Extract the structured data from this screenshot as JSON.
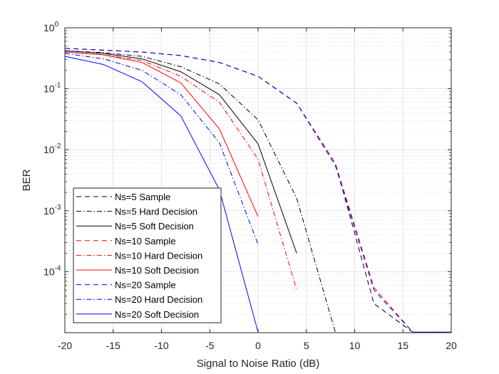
{
  "chart_data": {
    "type": "line",
    "xlabel": "Signal to Noise Ratio (dB)",
    "ylabel": "BER",
    "xlim": [
      -20,
      20
    ],
    "ylim": [
      1e-05,
      1
    ],
    "yscale": "log",
    "x_ticks": [
      -20,
      -15,
      -10,
      -5,
      0,
      5,
      10,
      15,
      20
    ],
    "x_tick_labels": [
      "-20",
      "-15",
      "-10",
      "-5",
      "0",
      "5",
      "10",
      "15",
      "20"
    ],
    "y_ticks": [
      {
        "value": 1,
        "base": "10",
        "exp": "0"
      },
      {
        "value": 0.1,
        "base": "10",
        "exp": "-1"
      },
      {
        "value": 0.01,
        "base": "10",
        "exp": "-2"
      },
      {
        "value": 0.001,
        "base": "10",
        "exp": "-3"
      },
      {
        "value": 0.0001,
        "base": "10",
        "exp": "-4"
      }
    ],
    "grid": true,
    "minor_grid": true,
    "legend_position": "bottom-left",
    "series": [
      {
        "name": "Ns=5 Sample",
        "color": "#000000",
        "style": "dashed",
        "x": [
          -20,
          -16,
          -12,
          -8,
          -4,
          0,
          4,
          8,
          12,
          16,
          20
        ],
        "y": [
          0.46,
          0.43,
          0.4,
          0.35,
          0.27,
          0.16,
          0.058,
          0.006,
          3e-05,
          1.02e-05,
          1.02e-05
        ]
      },
      {
        "name": "Ns=5 Hard Decision",
        "color": "#000000",
        "style": "dashdot",
        "x": [
          -20,
          -16,
          -12,
          -8,
          -4,
          0,
          4,
          8
        ],
        "y": [
          0.42,
          0.39,
          0.34,
          0.23,
          0.12,
          0.031,
          0.0016,
          1.02e-05
        ]
      },
      {
        "name": "Ns=5 Soft Decision",
        "color": "#000000",
        "style": "solid",
        "x": [
          -20,
          -16,
          -12,
          -8,
          -4,
          0,
          4
        ],
        "y": [
          0.42,
          0.38,
          0.31,
          0.19,
          0.08,
          0.0125,
          0.0002
        ]
      },
      {
        "name": "Ns=10 Sample",
        "color": "#ff0000",
        "style": "dashed",
        "x": [
          -20,
          -16,
          -12,
          -8,
          -4,
          0,
          4,
          8,
          12,
          16,
          20
        ],
        "y": [
          0.46,
          0.43,
          0.4,
          0.35,
          0.27,
          0.16,
          0.058,
          0.006,
          5.5e-05,
          1.02e-05,
          1.02e-05
        ]
      },
      {
        "name": "Ns=10 Hard Decision",
        "color": "#ff0000",
        "style": "dashdot",
        "x": [
          -20,
          -16,
          -12,
          -8,
          -4,
          0,
          4
        ],
        "y": [
          0.4,
          0.36,
          0.29,
          0.16,
          0.06,
          0.007,
          5e-05
        ]
      },
      {
        "name": "Ns=10 Soft Decision",
        "color": "#ff0000",
        "style": "solid",
        "x": [
          -20,
          -16,
          -12,
          -8,
          -4,
          0
        ],
        "y": [
          0.4,
          0.36,
          0.27,
          0.125,
          0.022,
          0.0008
        ]
      },
      {
        "name": "Ns=20 Sample",
        "color": "#0000ff",
        "style": "dashed",
        "x": [
          -20,
          -16,
          -12,
          -8,
          -4,
          0,
          4,
          8,
          12,
          16,
          20
        ],
        "y": [
          0.46,
          0.43,
          0.4,
          0.35,
          0.27,
          0.16,
          0.058,
          0.0055,
          5e-05,
          1.02e-05,
          1.02e-05
        ]
      },
      {
        "name": "Ns=20 Hard Decision",
        "color": "#0000ff",
        "style": "dashdot",
        "x": [
          -20,
          -16,
          -12,
          -8,
          -4,
          0
        ],
        "y": [
          0.38,
          0.31,
          0.2,
          0.08,
          0.013,
          0.00028
        ]
      },
      {
        "name": "Ns=20 Soft Decision",
        "color": "#0000ff",
        "style": "solid",
        "x": [
          -20,
          -16,
          -12,
          -8,
          -4,
          0
        ],
        "y": [
          0.34,
          0.25,
          0.13,
          0.036,
          0.0022,
          1.02e-05
        ]
      }
    ]
  }
}
